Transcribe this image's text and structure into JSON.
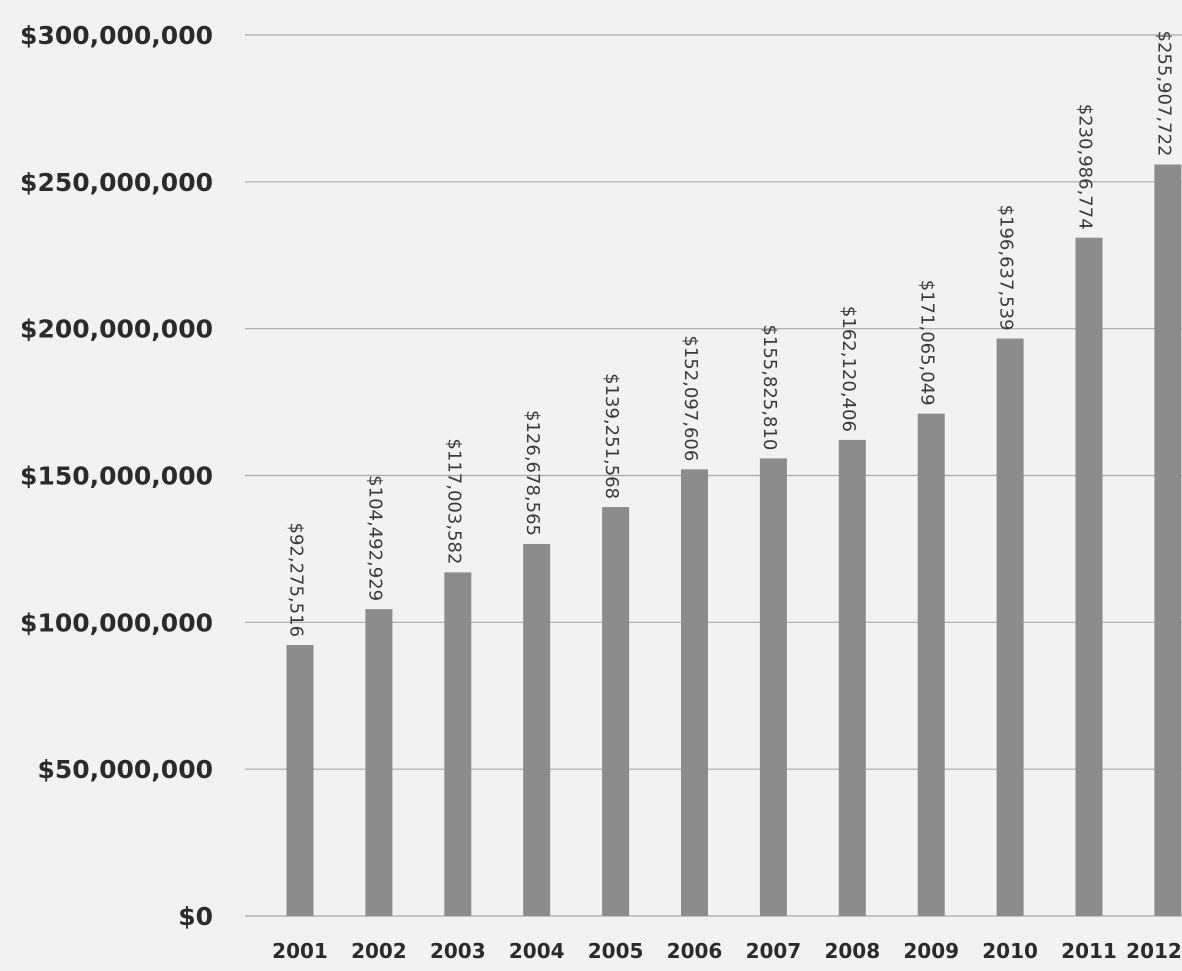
{
  "chart_data": {
    "type": "bar",
    "categories": [
      "2001",
      "2002",
      "2003",
      "2004",
      "2005",
      "2006",
      "2007",
      "2008",
      "2009",
      "2010",
      "2011",
      "2012"
    ],
    "values": [
      92275516,
      104492929,
      117003582,
      126678565,
      139251568,
      152097606,
      155825810,
      162120406,
      171065049,
      196637539,
      230986774,
      255907722
    ],
    "data_labels": [
      "$92,275,516",
      "$104,492,929",
      "$117,003,582",
      "$126,678,565",
      "$139,251,568",
      "$152,097,606",
      "$155,825,810",
      "$162,120,406",
      "$171,065,049",
      "$196,637,539",
      "$230,986,774",
      "$255,907,722"
    ],
    "ylim": [
      0,
      300000000
    ],
    "y_ticks": [
      0,
      50000000,
      100000000,
      150000000,
      200000000,
      250000000,
      300000000
    ],
    "y_tick_labels": [
      "$0",
      "$50,000,000",
      "$100,000,000",
      "$150,000,000",
      "$200,000,000",
      "$250,000,000",
      "$300,000,000"
    ],
    "title": "",
    "xlabel": "",
    "ylabel": "",
    "grid": true,
    "legend": "none",
    "colors": {
      "bar": "#8c8c8c",
      "grid": "#a9a9a9",
      "background": "#f2f2f2",
      "text": "#2b2b2b"
    }
  }
}
